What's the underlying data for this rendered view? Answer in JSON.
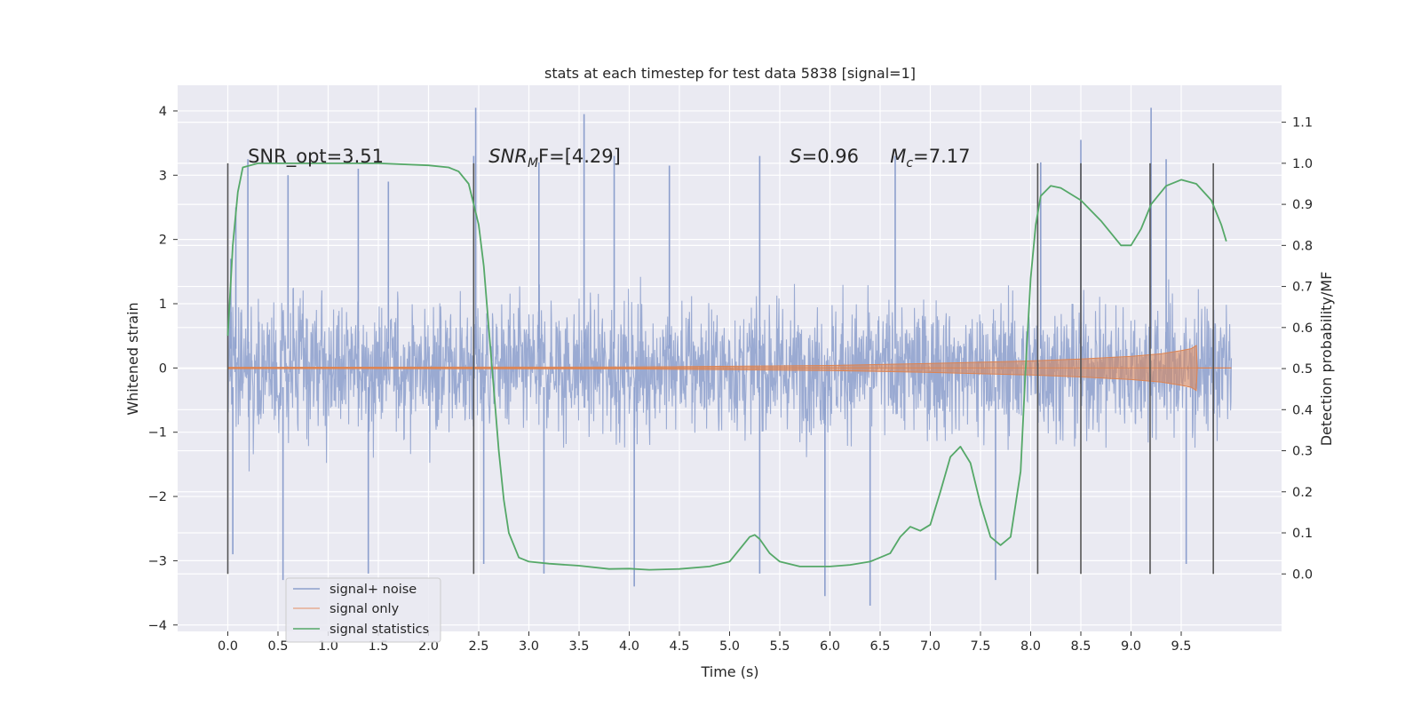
{
  "chart_data": {
    "type": "line",
    "title": "stats at each timestep for test data 5838 [signal=1]",
    "xlabel": "Time (s)",
    "ylabel": "Whitened strain",
    "y2label": "Detection probability/MF",
    "xlim": [
      -0.5,
      10.5
    ],
    "ylim": [
      -4.1,
      4.4
    ],
    "y2lim": [
      -0.14,
      1.19
    ],
    "x_ticks": [
      0.0,
      0.5,
      1.0,
      1.5,
      2.0,
      2.5,
      3.0,
      3.5,
      4.0,
      4.5,
      5.0,
      5.5,
      6.0,
      6.5,
      7.0,
      7.5,
      8.0,
      8.5,
      9.0,
      9.5
    ],
    "x_tick_labels": [
      "0.0",
      "0.5",
      "1.0",
      "1.5",
      "2.0",
      "2.5",
      "3.0",
      "3.5",
      "4.0",
      "4.5",
      "5.0",
      "5.5",
      "6.0",
      "6.5",
      "7.0",
      "7.5",
      "8.0",
      "8.5",
      "9.0",
      "9.5"
    ],
    "y_ticks": [
      4,
      3,
      2,
      1,
      0,
      -1,
      -2,
      -3,
      -4
    ],
    "y_tick_labels": [
      "4",
      "3",
      "2",
      "1",
      "0",
      "−1",
      "−2",
      "−3",
      "−4"
    ],
    "y2_ticks": [
      1.1,
      1.0,
      0.9,
      0.8,
      0.7,
      0.6,
      0.5,
      0.4,
      0.3,
      0.2,
      0.1,
      0.0
    ],
    "y2_tick_labels": [
      "1.1",
      "1.0",
      "0.9",
      "0.8",
      "0.7",
      "0.6",
      "0.5",
      "0.4",
      "0.3",
      "0.2",
      "0.1",
      "0.0"
    ],
    "grid": true,
    "legend_placement": "lower-left",
    "series": [
      {
        "name": "signal+ noise",
        "color": "#8c9fcd",
        "x_start": 0.0,
        "x_end": 10.0,
        "typical_range": [
          -1.7,
          1.7
        ],
        "peaks_high": [
          [
            0.03,
            1.7
          ],
          [
            0.08,
            2.5
          ],
          [
            0.2,
            3.25
          ],
          [
            0.6,
            3.0
          ],
          [
            1.3,
            3.1
          ],
          [
            1.6,
            2.9
          ],
          [
            2.45,
            3.3
          ],
          [
            2.47,
            4.05
          ],
          [
            3.1,
            3.2
          ],
          [
            3.55,
            3.95
          ],
          [
            3.85,
            3.3
          ],
          [
            4.4,
            3.15
          ],
          [
            5.3,
            3.3
          ],
          [
            6.65,
            3.3
          ],
          [
            8.1,
            3.2
          ],
          [
            8.5,
            3.55
          ],
          [
            9.2,
            4.05
          ],
          [
            9.35,
            3.25
          ]
        ],
        "peaks_low": [
          [
            0.05,
            -2.9
          ],
          [
            0.55,
            -3.3
          ],
          [
            1.4,
            -3.2
          ],
          [
            2.55,
            -3.05
          ],
          [
            3.15,
            -3.2
          ],
          [
            4.05,
            -3.4
          ],
          [
            5.3,
            -3.2
          ],
          [
            5.95,
            -3.55
          ],
          [
            6.4,
            -3.7
          ],
          [
            7.65,
            -3.3
          ],
          [
            9.55,
            -3.05
          ]
        ]
      },
      {
        "name": "signal only",
        "color": "#dd8452",
        "x_start": 0.0,
        "x_end": 10.0,
        "envelope": [
          [
            0.0,
            0.01
          ],
          [
            4.0,
            0.015
          ],
          [
            6.0,
            0.04
          ],
          [
            7.0,
            0.07
          ],
          [
            8.0,
            0.11
          ],
          [
            8.5,
            0.14
          ],
          [
            9.0,
            0.18
          ],
          [
            9.3,
            0.22
          ],
          [
            9.5,
            0.27
          ],
          [
            9.6,
            0.3
          ],
          [
            9.65,
            0.35
          ],
          [
            9.66,
            0.0
          ],
          [
            10.0,
            0.0
          ]
        ]
      },
      {
        "name": "signal statistics",
        "color": "#55a868",
        "axis": "right",
        "points": [
          [
            0.0,
            0.58
          ],
          [
            0.05,
            0.8
          ],
          [
            0.1,
            0.93
          ],
          [
            0.15,
            0.99
          ],
          [
            0.3,
            1.0
          ],
          [
            1.0,
            1.0
          ],
          [
            1.5,
            1.0
          ],
          [
            2.0,
            0.995
          ],
          [
            2.2,
            0.99
          ],
          [
            2.3,
            0.98
          ],
          [
            2.4,
            0.95
          ],
          [
            2.45,
            0.9
          ],
          [
            2.5,
            0.85
          ],
          [
            2.55,
            0.75
          ],
          [
            2.6,
            0.6
          ],
          [
            2.65,
            0.45
          ],
          [
            2.7,
            0.3
          ],
          [
            2.75,
            0.18
          ],
          [
            2.8,
            0.1
          ],
          [
            2.9,
            0.04
          ],
          [
            3.0,
            0.03
          ],
          [
            3.2,
            0.025
          ],
          [
            3.5,
            0.02
          ],
          [
            3.8,
            0.012
          ],
          [
            4.0,
            0.013
          ],
          [
            4.2,
            0.01
          ],
          [
            4.5,
            0.012
          ],
          [
            4.8,
            0.018
          ],
          [
            5.0,
            0.03
          ],
          [
            5.1,
            0.06
          ],
          [
            5.2,
            0.09
          ],
          [
            5.25,
            0.095
          ],
          [
            5.3,
            0.085
          ],
          [
            5.4,
            0.05
          ],
          [
            5.5,
            0.03
          ],
          [
            5.7,
            0.018
          ],
          [
            6.0,
            0.018
          ],
          [
            6.2,
            0.022
          ],
          [
            6.4,
            0.03
          ],
          [
            6.6,
            0.05
          ],
          [
            6.7,
            0.09
          ],
          [
            6.8,
            0.115
          ],
          [
            6.9,
            0.105
          ],
          [
            7.0,
            0.12
          ],
          [
            7.1,
            0.2
          ],
          [
            7.2,
            0.285
          ],
          [
            7.3,
            0.31
          ],
          [
            7.4,
            0.27
          ],
          [
            7.5,
            0.17
          ],
          [
            7.6,
            0.09
          ],
          [
            7.7,
            0.07
          ],
          [
            7.8,
            0.09
          ],
          [
            7.9,
            0.25
          ],
          [
            7.95,
            0.5
          ],
          [
            8.0,
            0.72
          ],
          [
            8.05,
            0.85
          ],
          [
            8.1,
            0.92
          ],
          [
            8.2,
            0.945
          ],
          [
            8.3,
            0.94
          ],
          [
            8.5,
            0.91
          ],
          [
            8.7,
            0.86
          ],
          [
            8.9,
            0.8
          ],
          [
            9.0,
            0.8
          ],
          [
            9.1,
            0.84
          ],
          [
            9.2,
            0.9
          ],
          [
            9.35,
            0.945
          ],
          [
            9.5,
            0.96
          ],
          [
            9.65,
            0.95
          ],
          [
            9.8,
            0.91
          ],
          [
            9.9,
            0.85
          ],
          [
            9.95,
            0.81
          ]
        ]
      }
    ],
    "vertical_markers": [
      0.0,
      2.45,
      8.07,
      8.5,
      9.19,
      9.82
    ],
    "annotations": [
      {
        "id": "snr-opt",
        "text": "SNR_opt=3.51",
        "x": 0.2,
        "y": 3.2
      },
      {
        "id": "snr-mf",
        "base": "SNR",
        "sub": "M",
        "rest": "F=[4.29]",
        "x": 2.6,
        "y": 3.2
      },
      {
        "id": "s",
        "italic": "S",
        "rest": "=0.96",
        "x": 5.6,
        "y": 3.2
      },
      {
        "id": "mc",
        "base": "M",
        "sub": "c",
        "rest": "=7.17",
        "x": 6.6,
        "y": 3.2
      }
    ]
  }
}
